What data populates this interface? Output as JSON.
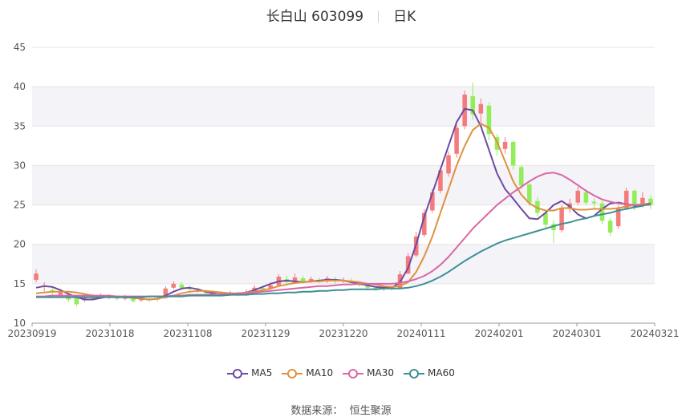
{
  "chart_data": {
    "type": "candlestick",
    "title": "长白山 603099",
    "subtitle": "日K",
    "ylim": [
      10,
      45
    ],
    "y_ticks": [
      10,
      15,
      20,
      25,
      30,
      35,
      40,
      45
    ],
    "x_tick_labels": [
      "20230919",
      "20231018",
      "20231108",
      "20231129",
      "20231220",
      "20240111",
      "20240201",
      "20240301",
      "20240321"
    ],
    "colors": {
      "up": "#f47b7b",
      "down": "#92ee58",
      "MA5": "#6e4aa0",
      "MA10": "#e0913f",
      "MA30": "#d968a6",
      "MA60": "#3f8f96",
      "band": "#f3f3f8",
      "grid": "#e6e6e6"
    },
    "series": [
      {
        "name": "MA5",
        "values": [
          14.5,
          14.7,
          14.6,
          14.2,
          13.7,
          13.3,
          13.0,
          13.0,
          13.2,
          13.4,
          13.4,
          13.3,
          13.2,
          13.1,
          13.0,
          13.1,
          13.5,
          14.0,
          14.4,
          14.5,
          14.3,
          14.0,
          13.8,
          13.6,
          13.6,
          13.7,
          13.9,
          14.2,
          14.6,
          15.0,
          15.3,
          15.4,
          15.3,
          15.2,
          15.3,
          15.4,
          15.5,
          15.5,
          15.4,
          15.2,
          15.0,
          14.8,
          14.6,
          14.5,
          14.5,
          15.2,
          17.0,
          20.0,
          23.5,
          26.5,
          29.5,
          32.5,
          35.5,
          37.2,
          37.0,
          35.0,
          32.0,
          29.0,
          27.0,
          25.8,
          24.5,
          23.3,
          23.2,
          24.0,
          25.0,
          25.5,
          24.8,
          23.8,
          23.3,
          23.6,
          24.5,
          25.2,
          25.3,
          25.1,
          24.9,
          24.9,
          25.2
        ]
      },
      {
        "name": "MA10",
        "values": [
          13.8,
          13.9,
          14.0,
          14.0,
          14.0,
          13.9,
          13.7,
          13.5,
          13.4,
          13.3,
          13.3,
          13.3,
          13.2,
          13.1,
          13.0,
          13.1,
          13.3,
          13.5,
          13.8,
          14.0,
          14.1,
          14.1,
          14.0,
          13.9,
          13.8,
          13.8,
          13.9,
          14.0,
          14.2,
          14.4,
          14.7,
          14.9,
          15.1,
          15.2,
          15.3,
          15.3,
          15.4,
          15.4,
          15.4,
          15.3,
          15.2,
          15.0,
          14.9,
          14.7,
          14.6,
          14.7,
          15.2,
          16.5,
          18.5,
          21.0,
          24.0,
          27.0,
          30.0,
          32.5,
          34.5,
          35.3,
          34.8,
          33.0,
          30.5,
          28.0,
          26.3,
          25.2,
          24.6,
          24.3,
          24.3,
          24.6,
          24.6,
          24.4,
          24.4,
          24.5,
          24.5,
          24.5,
          24.6,
          24.8,
          25.0,
          25.1,
          25.2
        ]
      },
      {
        "name": "MA30",
        "values": [
          13.4,
          13.4,
          13.5,
          13.5,
          13.5,
          13.5,
          13.5,
          13.5,
          13.5,
          13.5,
          13.4,
          13.4,
          13.4,
          13.4,
          13.4,
          13.4,
          13.4,
          13.5,
          13.5,
          13.6,
          13.6,
          13.6,
          13.7,
          13.7,
          13.7,
          13.8,
          13.8,
          13.9,
          14.0,
          14.1,
          14.2,
          14.3,
          14.4,
          14.5,
          14.6,
          14.7,
          14.7,
          14.8,
          14.9,
          14.9,
          15.0,
          15.0,
          15.0,
          15.0,
          15.0,
          15.1,
          15.3,
          15.6,
          16.0,
          16.6,
          17.4,
          18.4,
          19.6,
          20.8,
          22.0,
          23.0,
          24.0,
          25.0,
          25.8,
          26.6,
          27.3,
          28.0,
          28.6,
          29.0,
          29.1,
          28.8,
          28.2,
          27.5,
          26.8,
          26.2,
          25.7,
          25.4,
          25.2,
          25.1,
          25.0,
          25.0,
          25.0
        ]
      },
      {
        "name": "MA60",
        "values": [
          13.3,
          13.3,
          13.3,
          13.3,
          13.3,
          13.3,
          13.3,
          13.3,
          13.3,
          13.3,
          13.3,
          13.3,
          13.3,
          13.3,
          13.4,
          13.4,
          13.4,
          13.4,
          13.4,
          13.5,
          13.5,
          13.5,
          13.5,
          13.5,
          13.6,
          13.6,
          13.6,
          13.7,
          13.7,
          13.8,
          13.8,
          13.9,
          13.9,
          14.0,
          14.0,
          14.1,
          14.1,
          14.2,
          14.2,
          14.3,
          14.3,
          14.3,
          14.3,
          14.4,
          14.4,
          14.4,
          14.5,
          14.7,
          15.0,
          15.4,
          15.9,
          16.5,
          17.2,
          17.9,
          18.5,
          19.1,
          19.6,
          20.1,
          20.5,
          20.8,
          21.1,
          21.4,
          21.7,
          22.0,
          22.3,
          22.6,
          22.8,
          23.1,
          23.3,
          23.6,
          23.8,
          24.0,
          24.3,
          24.5,
          24.7,
          24.9,
          25.2
        ]
      }
    ],
    "candles": [
      [
        15.5,
        16.3,
        16.8,
        15.2
      ],
      [
        14.6,
        14.8,
        15.2,
        14.0
      ],
      [
        14.2,
        13.9,
        14.5,
        13.5
      ],
      [
        13.6,
        13.9,
        14.1,
        13.3
      ],
      [
        13.5,
        13.0,
        13.8,
        12.7
      ],
      [
        13.2,
        12.4,
        13.4,
        12.1
      ],
      [
        12.9,
        13.2,
        13.6,
        12.7
      ],
      [
        13.4,
        13.1,
        13.7,
        12.9
      ],
      [
        13.3,
        13.5,
        13.8,
        13.1
      ],
      [
        13.4,
        13.2,
        13.7,
        13.0
      ],
      [
        13.3,
        13.1,
        13.5,
        12.9
      ],
      [
        13.1,
        13.3,
        13.6,
        12.9
      ],
      [
        13.2,
        12.8,
        13.4,
        12.6
      ],
      [
        12.9,
        13.1,
        13.3,
        12.7
      ],
      [
        13.0,
        12.9,
        13.3,
        12.7
      ],
      [
        13.0,
        13.2,
        13.5,
        12.8
      ],
      [
        13.2,
        14.4,
        14.7,
        13.1
      ],
      [
        14.5,
        15.0,
        15.3,
        14.3
      ],
      [
        14.9,
        14.5,
        15.2,
        14.2
      ],
      [
        14.5,
        14.3,
        14.8,
        14.0
      ],
      [
        14.2,
        14.0,
        14.5,
        13.8
      ],
      [
        14.0,
        13.8,
        14.2,
        13.6
      ],
      [
        13.8,
        13.6,
        14.0,
        13.4
      ],
      [
        13.6,
        13.7,
        14.0,
        13.4
      ],
      [
        13.7,
        13.9,
        14.1,
        13.5
      ],
      [
        13.8,
        13.6,
        14.0,
        13.4
      ],
      [
        13.7,
        14.0,
        14.3,
        13.5
      ],
      [
        14.0,
        14.5,
        14.8,
        13.8
      ],
      [
        14.5,
        14.3,
        14.8,
        14.1
      ],
      [
        14.4,
        14.8,
        15.2,
        14.2
      ],
      [
        14.8,
        15.9,
        16.2,
        14.6
      ],
      [
        15.6,
        15.2,
        16.0,
        14.9
      ],
      [
        15.2,
        15.8,
        16.3,
        15.0
      ],
      [
        15.7,
        15.3,
        16.0,
        15.0
      ],
      [
        15.3,
        15.6,
        15.9,
        15.1
      ],
      [
        15.5,
        15.3,
        15.8,
        15.1
      ],
      [
        15.3,
        15.7,
        16.0,
        15.1
      ],
      [
        15.6,
        15.3,
        15.9,
        15.0
      ],
      [
        15.3,
        15.5,
        15.8,
        15.1
      ],
      [
        15.4,
        15.1,
        15.7,
        14.9
      ],
      [
        15.1,
        14.8,
        15.3,
        14.6
      ],
      [
        14.8,
        14.5,
        15.0,
        14.3
      ],
      [
        14.5,
        14.3,
        14.7,
        14.1
      ],
      [
        14.3,
        14.6,
        14.8,
        14.1
      ],
      [
        14.5,
        14.3,
        14.8,
        14.1
      ],
      [
        14.4,
        16.2,
        16.6,
        14.3
      ],
      [
        16.3,
        18.5,
        18.9,
        16.2
      ],
      [
        18.6,
        21.0,
        21.6,
        18.4
      ],
      [
        21.2,
        24.0,
        24.5,
        20.9
      ],
      [
        24.3,
        26.6,
        27.0,
        24.0
      ],
      [
        26.8,
        29.4,
        29.8,
        26.5
      ],
      [
        29.0,
        31.3,
        31.8,
        28.6
      ],
      [
        31.5,
        34.8,
        35.2,
        31.0
      ],
      [
        35.0,
        39.0,
        39.5,
        34.6
      ],
      [
        38.8,
        36.5,
        40.5,
        35.8
      ],
      [
        36.6,
        37.8,
        38.5,
        35.0
      ],
      [
        37.6,
        34.0,
        38.0,
        33.2
      ],
      [
        33.6,
        32.0,
        34.0,
        31.2
      ],
      [
        32.1,
        33.0,
        33.6,
        31.5
      ],
      [
        33.0,
        30.0,
        33.2,
        29.5
      ],
      [
        29.8,
        27.5,
        30.0,
        27.0
      ],
      [
        27.6,
        25.3,
        27.8,
        24.8
      ],
      [
        25.5,
        24.0,
        26.0,
        23.5
      ],
      [
        24.0,
        22.5,
        24.3,
        21.9
      ],
      [
        22.6,
        21.8,
        23.0,
        20.2
      ],
      [
        21.8,
        24.5,
        25.0,
        21.5
      ],
      [
        24.6,
        25.2,
        25.8,
        24.0
      ],
      [
        25.3,
        26.8,
        27.3,
        25.0
      ],
      [
        26.6,
        25.3,
        27.0,
        25.0
      ],
      [
        25.4,
        25.2,
        25.8,
        24.6
      ],
      [
        25.2,
        23.0,
        25.5,
        22.6
      ],
      [
        23.0,
        21.5,
        23.4,
        21.1
      ],
      [
        22.3,
        24.5,
        24.9,
        22.0
      ],
      [
        24.6,
        26.8,
        27.2,
        24.4
      ],
      [
        26.8,
        24.8,
        27.0,
        24.3
      ],
      [
        24.9,
        25.9,
        26.6,
        24.7
      ],
      [
        25.8,
        25.0,
        26.2,
        24.5
      ]
    ]
  },
  "legend": [
    "MA5",
    "MA10",
    "MA30",
    "MA60"
  ],
  "source": {
    "label": "数据来源：",
    "value": "恒生聚源"
  }
}
